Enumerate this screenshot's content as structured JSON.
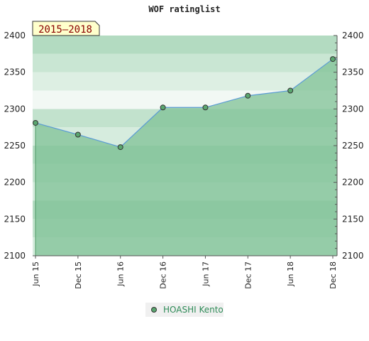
{
  "chart_data": {
    "type": "area",
    "title": "WOF ratinglist",
    "period_label": "2015–2018",
    "x": [
      "Jun 15",
      "Dec 15",
      "Jun 16",
      "Dec 16",
      "Jun 17",
      "Dec 17",
      "Jun 18",
      "Dec 18"
    ],
    "series": [
      {
        "name": "HOASHI Kento",
        "values": [
          2281,
          2265,
          2248,
          2302,
          2302,
          2318,
          2325,
          2368
        ]
      }
    ],
    "ylim": [
      2100,
      2400
    ],
    "yticks": [
      2100,
      2150,
      2200,
      2250,
      2300,
      2350,
      2400
    ],
    "xlabel": "",
    "ylabel": "",
    "grid": true,
    "legend_position": "bottom",
    "colors": {
      "fill": "#7fc295",
      "fill_opacity": 0.75,
      "line": "#5b9bd5",
      "marker": "#5aa66f",
      "band_light": "#f2f8f4",
      "band_mid": "#c9e6d3",
      "band_dark": "#9fd2b0"
    }
  }
}
